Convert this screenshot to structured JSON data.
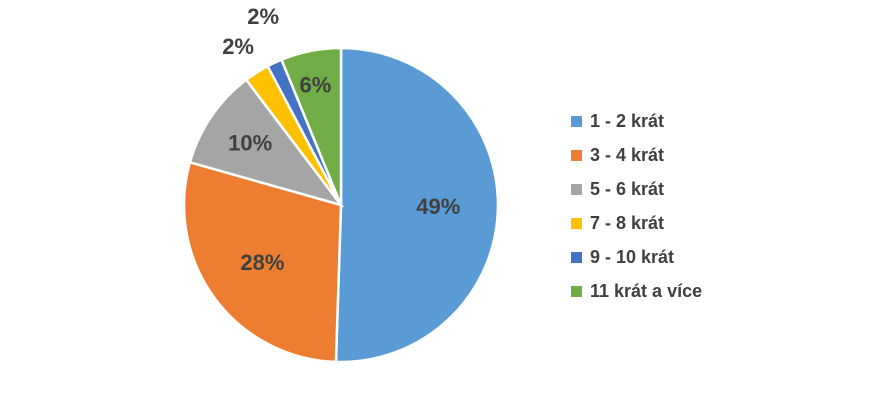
{
  "chart_data": {
    "type": "pie",
    "title": "",
    "legend_position": "right",
    "slices": [
      {
        "label": "1 - 2 krát",
        "value": 49,
        "value_label": "49%",
        "color": "#5B9BD5"
      },
      {
        "label": "3 - 4 krát",
        "value": 28,
        "value_label": "28%",
        "color": "#ED7D31"
      },
      {
        "label": "5 - 6 krát",
        "value": 10,
        "value_label": "10%",
        "color": "#A5A5A5"
      },
      {
        "label": "7 - 8 krát",
        "value": 2.5,
        "value_label": "2%",
        "color": "#FFC000"
      },
      {
        "label": "9 - 10 krát",
        "value": 1.5,
        "value_label": "2%",
        "color": "#4472C4"
      },
      {
        "label": "11 krát a více",
        "value": 6,
        "value_label": "6%",
        "color": "#70AD47"
      }
    ]
  }
}
